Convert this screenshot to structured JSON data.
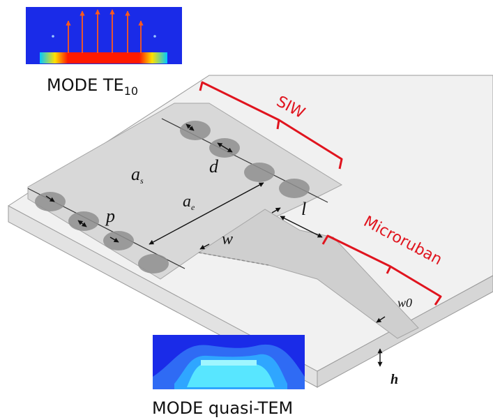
{
  "mode_top": {
    "prefix": "MODE TE",
    "sub": "10"
  },
  "mode_bottom": {
    "label": "MODE quasi-TEM"
  },
  "labels": {
    "siw": "SIW",
    "microstrip": "Microruban",
    "d": "d",
    "as": "a",
    "as_sub": "s",
    "ae": "a",
    "ae_sub": "e",
    "p": "p",
    "w": "w",
    "l": "l",
    "w0": "w0",
    "h": "h"
  },
  "colors": {
    "substrate_top": "#eeeeee",
    "substrate_edge": "#d9d9d9",
    "metal": "#cfcfcf",
    "via": "#8f8f8f",
    "bracket": "#e0141e",
    "field_bg": "#1a2be8"
  }
}
